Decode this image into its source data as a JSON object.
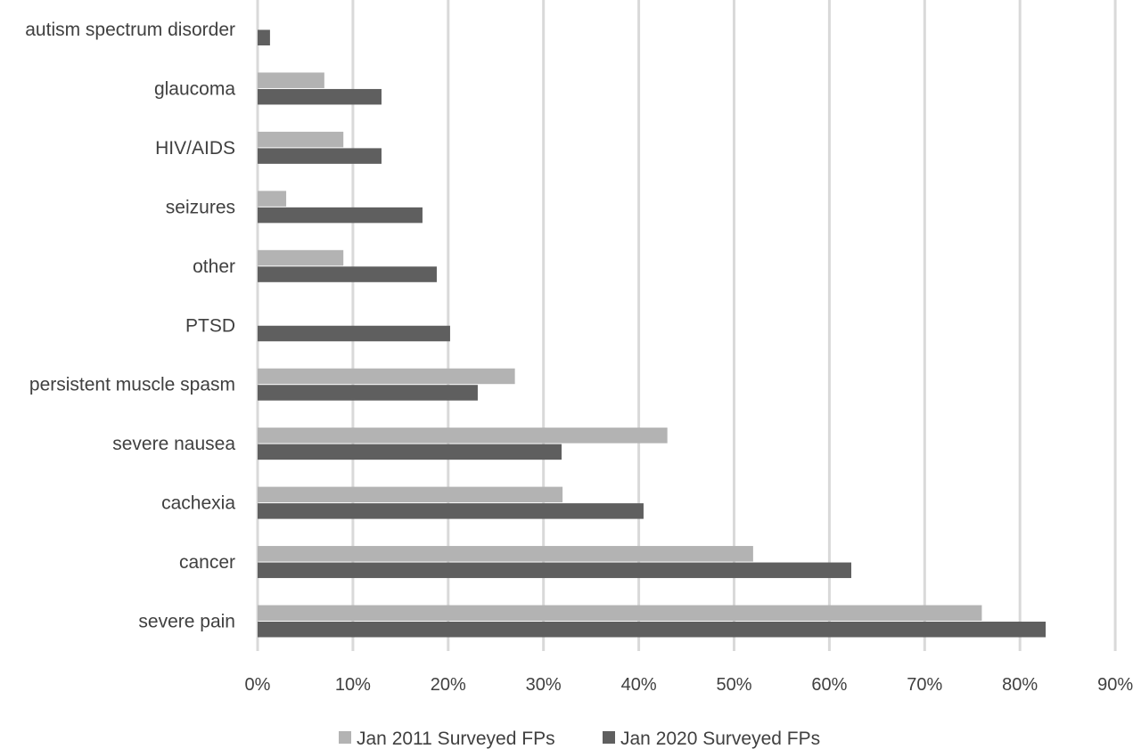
{
  "chart_data": {
    "type": "bar",
    "orientation": "horizontal",
    "categories": [
      "autism spectrum disorder",
      "glaucoma",
      "HIV/AIDS",
      "seizures",
      "other",
      "PTSD",
      "persistent muscle spasm",
      "severe nausea",
      "cachexia",
      "cancer",
      "severe pain"
    ],
    "series": [
      {
        "name": "Jan 2011 Surveyed FPs",
        "color": "#b3b3b3",
        "values": [
          null,
          7,
          9,
          3,
          9,
          null,
          27,
          43,
          32,
          52,
          76
        ]
      },
      {
        "name": "Jan 2020 Surveyed FPs",
        "color": "#5f5f5f",
        "values": [
          1.3,
          13,
          13,
          17.3,
          18.8,
          20.2,
          23.1,
          31.9,
          40.5,
          62.3,
          82.7
        ]
      }
    ],
    "xlim": [
      0,
      90
    ],
    "xticks": [
      0,
      10,
      20,
      30,
      40,
      50,
      60,
      70,
      80,
      90
    ],
    "tick_suffix": "%",
    "grid": "vertical",
    "legend_position": "bottom"
  }
}
